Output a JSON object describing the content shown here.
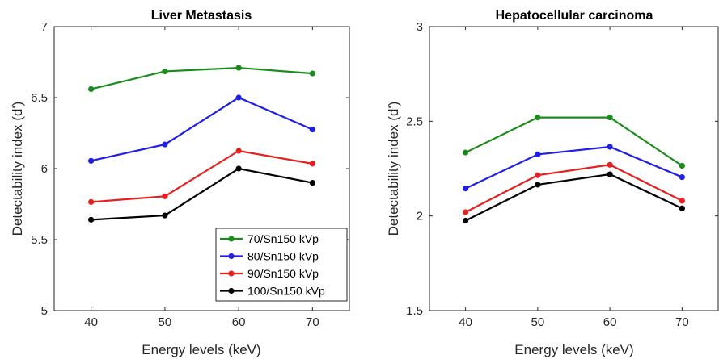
{
  "chart_data": [
    {
      "type": "line",
      "title": "Liver Metastasis",
      "xlabel": "Energy levels (keV)",
      "ylabel": "Detectability index (d')",
      "x": [
        40,
        50,
        60,
        70
      ],
      "xlim": [
        35,
        75
      ],
      "ylim": [
        5,
        7
      ],
      "yticks": [
        "5",
        "5.5",
        "6",
        "6.5",
        "7"
      ],
      "xticks": [
        "40",
        "50",
        "60",
        "70"
      ],
      "grid": false,
      "legend_position": "bottom-right",
      "series": [
        {
          "name": "70/Sn150 kVp",
          "color": "#1a8c1a",
          "values": [
            6.56,
            6.685,
            6.71,
            6.67
          ]
        },
        {
          "name": "80/Sn150 kVp",
          "color": "#1f1fe6",
          "values": [
            6.055,
            6.17,
            6.5,
            6.275
          ]
        },
        {
          "name": "90/Sn150 kVp",
          "color": "#e61f1f",
          "values": [
            5.765,
            5.805,
            6.125,
            6.035
          ]
        },
        {
          "name": "100/Sn150 kVp",
          "color": "#000000",
          "values": [
            5.64,
            5.67,
            6.0,
            5.9
          ]
        }
      ]
    },
    {
      "type": "line",
      "title": "Hepatocellular carcinoma",
      "xlabel": "Energy levels (keV)",
      "ylabel": "Detectability index (d')",
      "x": [
        40,
        50,
        60,
        70
      ],
      "xlim": [
        35,
        75
      ],
      "ylim": [
        1.5,
        3
      ],
      "yticks": [
        "1.5",
        "2",
        "2.5",
        "3"
      ],
      "xticks": [
        "40",
        "50",
        "60",
        "70"
      ],
      "grid": false,
      "series": [
        {
          "name": "70/Sn150 kVp",
          "color": "#1a8c1a",
          "values": [
            2.335,
            2.52,
            2.52,
            2.265
          ]
        },
        {
          "name": "80/Sn150 kVp",
          "color": "#1f1fe6",
          "values": [
            2.145,
            2.325,
            2.365,
            2.205
          ]
        },
        {
          "name": "90/Sn150 kVp",
          "color": "#e61f1f",
          "values": [
            2.02,
            2.215,
            2.27,
            2.08
          ]
        },
        {
          "name": "100/Sn150 kVp",
          "color": "#000000",
          "values": [
            1.975,
            2.165,
            2.22,
            2.04
          ]
        }
      ]
    }
  ]
}
